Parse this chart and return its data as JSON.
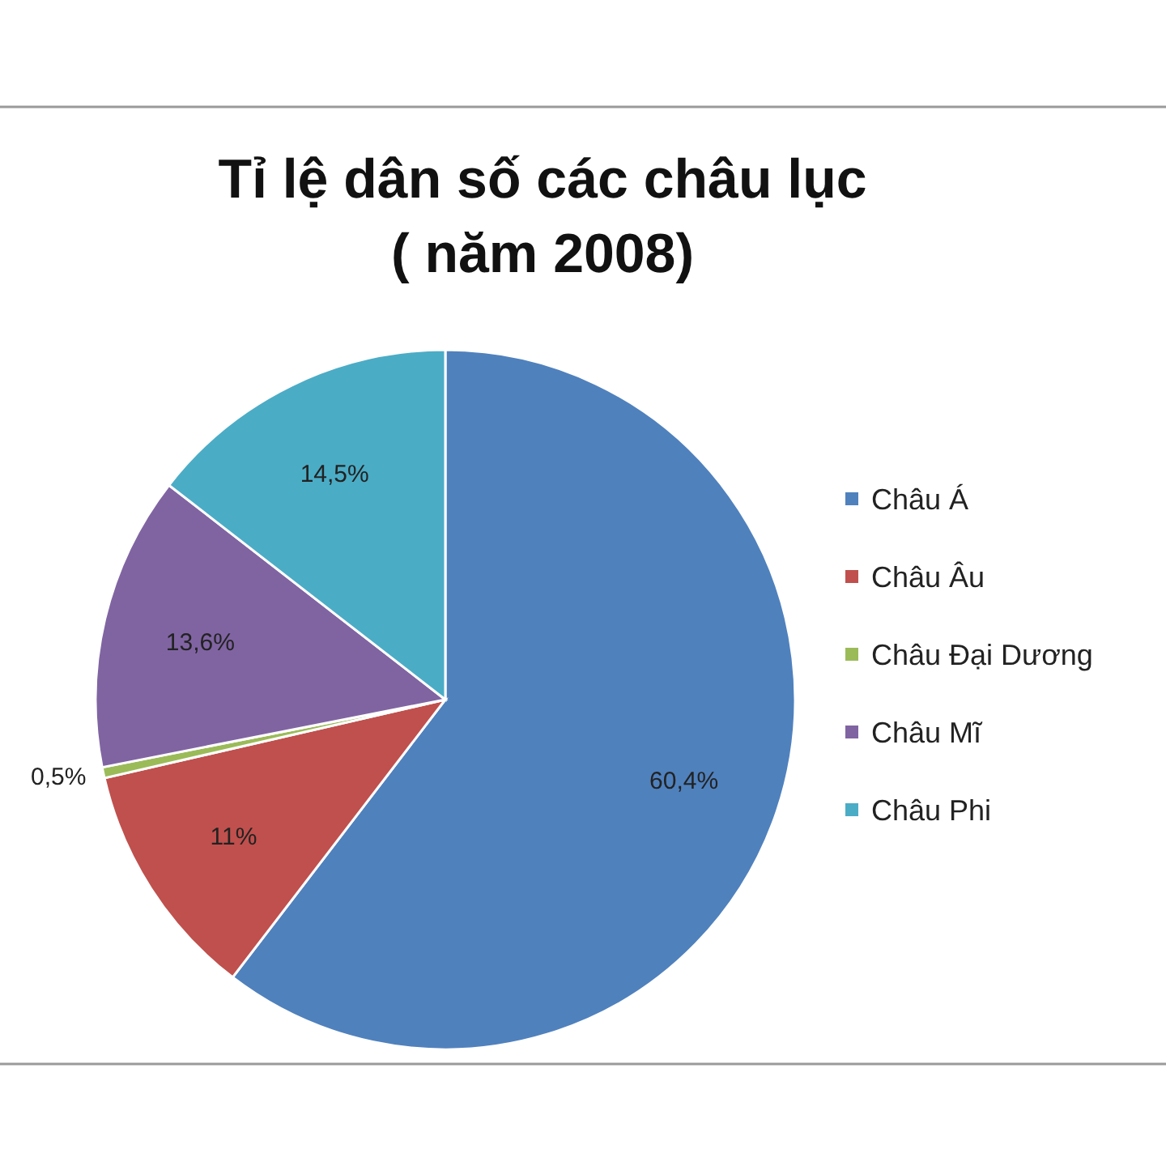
{
  "chart_data": {
    "type": "pie",
    "title": "Tỉ lệ dân số các châu lục\n( năm 2008)",
    "categories": [
      "Châu Á",
      "Châu Âu",
      "Châu Đại Dương",
      "Châu Mĩ",
      "Châu Phi"
    ],
    "values": [
      60.4,
      11,
      0.5,
      13.6,
      14.5
    ],
    "colors": [
      "#4f81bd",
      "#c0504d",
      "#9bbb59",
      "#8064a2",
      "#4bacc6"
    ],
    "value_labels": [
      "60,4%",
      "11%",
      "0,5%",
      "13,6%",
      "14,5%"
    ],
    "legend": "right"
  }
}
